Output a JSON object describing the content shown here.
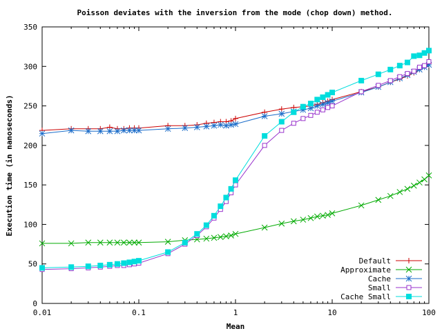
{
  "chart_data": {
    "type": "line",
    "title": "Poisson deviates with the inversion from the mode (chop down) method.",
    "xlabel": "Mean",
    "ylabel": "Execution time (in nanoseconds)",
    "x_scale": "log",
    "xlim": [
      0.01,
      100
    ],
    "ylim": [
      0,
      350
    ],
    "x_ticks": [
      {
        "value": 0.01,
        "label": "0.01"
      },
      {
        "value": 0.1,
        "label": "0.1"
      },
      {
        "value": 1,
        "label": "1"
      },
      {
        "value": 10,
        "label": "10"
      },
      {
        "value": 100,
        "label": "100"
      }
    ],
    "y_ticks": [
      0,
      50,
      100,
      150,
      200,
      250,
      300,
      350
    ],
    "grid": false,
    "legend_position": "bottom-right",
    "x": [
      0.01,
      0.02,
      0.03,
      0.04,
      0.05,
      0.06,
      0.07,
      0.08,
      0.09,
      0.1,
      0.2,
      0.3,
      0.4,
      0.5,
      0.6,
      0.7,
      0.8,
      0.9,
      1,
      2,
      3,
      4,
      5,
      6,
      7,
      8,
      9,
      10,
      20,
      30,
      40,
      50,
      60,
      70,
      80,
      90,
      100
    ],
    "series": [
      {
        "name": "Default",
        "color": "#cc0000",
        "marker": "plus",
        "values": [
          219,
          221,
          221,
          221,
          223,
          221,
          221,
          222,
          222,
          222,
          225,
          225,
          226,
          228,
          229,
          230,
          230,
          231,
          234,
          242,
          246,
          248,
          249,
          250,
          252,
          254,
          256,
          258,
          268,
          274,
          280,
          284,
          288,
          292,
          296,
          300,
          304
        ]
      },
      {
        "name": "Approximate",
        "color": "#00aa00",
        "marker": "cross",
        "values": [
          76,
          76,
          77,
          77,
          77,
          77,
          77,
          77,
          77,
          77,
          78,
          80,
          81,
          82,
          83,
          84,
          85,
          86,
          88,
          96,
          101,
          104,
          106,
          108,
          110,
          111,
          112,
          114,
          124,
          131,
          136,
          141,
          145,
          149,
          153,
          157,
          162
        ]
      },
      {
        "name": "Cache",
        "color": "#1a6cc9",
        "marker": "star",
        "values": [
          215,
          219,
          218,
          218,
          218,
          218,
          219,
          219,
          219,
          219,
          221,
          222,
          223,
          224,
          225,
          226,
          225,
          226,
          227,
          237,
          240,
          243,
          245,
          247,
          250,
          252,
          254,
          256,
          267,
          274,
          280,
          285,
          289,
          293,
          296,
          299,
          302
        ]
      },
      {
        "name": "Small",
        "color": "#9933cc",
        "marker": "square-open",
        "values": [
          43,
          44,
          45,
          46,
          47,
          48,
          48,
          49,
          50,
          51,
          63,
          75,
          86,
          97,
          108,
          119,
          129,
          140,
          150,
          200,
          219,
          228,
          234,
          238,
          242,
          245,
          248,
          250,
          268,
          276,
          282,
          287,
          291,
          294,
          299,
          301,
          306
        ]
      },
      {
        "name": "Cache Small",
        "color": "#00dddd",
        "marker": "square-filled",
        "values": [
          45,
          46,
          47,
          48,
          49,
          50,
          51,
          52,
          53,
          54,
          65,
          77,
          88,
          99,
          111,
          123,
          134,
          145,
          156,
          212,
          230,
          242,
          249,
          253,
          258,
          261,
          264,
          267,
          282,
          290,
          296,
          301,
          305,
          313,
          314,
          317,
          320
        ]
      }
    ]
  }
}
